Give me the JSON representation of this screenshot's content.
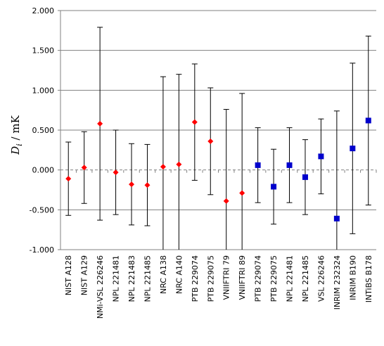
{
  "chart_data": {
    "type": "scatter",
    "title": "",
    "xlabel": "",
    "ylabel": {
      "symbol": "D",
      "subscript": "i",
      "unit": " / mK"
    },
    "ylim": [
      -1.0,
      2.0
    ],
    "yticks": [
      "-1.000",
      "-0.500",
      "0.000",
      "0.500",
      "1.000",
      "1.500",
      "2.000"
    ],
    "yticks_values": [
      -1.0,
      -0.5,
      0.0,
      0.5,
      1.0,
      1.5,
      2.0
    ],
    "grid": true,
    "legend": "none",
    "categories": [
      "NIST A128",
      "NIST A129",
      "NMi-VSL 226246",
      "NPL 221481",
      "NPL 221483",
      "NPL 221485",
      "NRC A138",
      "NRC A140",
      "PTB 229074",
      "PTB 229075",
      "VNIIFTRI 79",
      "VNIIFTRI 89",
      "PTB 229074",
      "PTB 229075",
      "NPL 221481",
      "NPL 221485",
      "VSL 226246",
      "INRIM 232324",
      "INRIM B190",
      "INTiBS B178"
    ],
    "series": [
      {
        "marker": "diamond",
        "color": "#ff0000",
        "values": [
          -0.11,
          0.03,
          0.58,
          -0.03,
          -0.18,
          -0.19,
          0.04,
          0.07,
          0.6,
          0.36,
          -0.39,
          -0.29,
          null,
          null,
          null,
          null,
          null,
          null,
          null,
          null
        ],
        "error": [
          0.46,
          0.45,
          1.21,
          0.53,
          0.51,
          0.51,
          1.13,
          1.13,
          0.73,
          0.67,
          1.15,
          1.25,
          null,
          null,
          null,
          null,
          null,
          null,
          null,
          null
        ]
      },
      {
        "marker": "square",
        "color": "#0000cc",
        "values": [
          null,
          null,
          null,
          null,
          null,
          null,
          null,
          null,
          null,
          null,
          null,
          null,
          0.06,
          -0.21,
          0.06,
          -0.09,
          0.17,
          -0.61,
          0.27,
          0.62
        ],
        "error": [
          null,
          null,
          null,
          null,
          null,
          null,
          null,
          null,
          null,
          null,
          null,
          null,
          0.47,
          0.47,
          0.47,
          0.47,
          0.47,
          1.35,
          1.07,
          1.06
        ]
      }
    ],
    "colors": {
      "grid": "#808080",
      "zero_line": "#808080",
      "error_bar": "#000000",
      "axis": "#808080"
    }
  }
}
